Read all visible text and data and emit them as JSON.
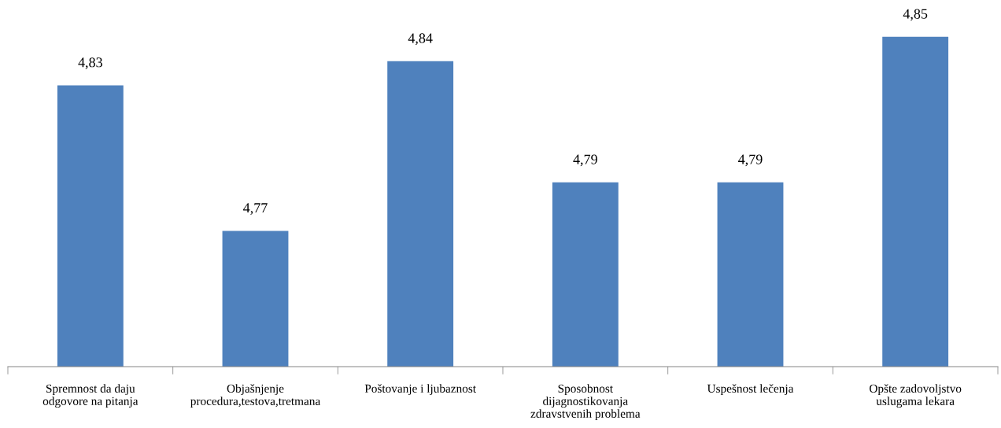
{
  "chart_data": {
    "type": "bar",
    "categories": [
      "Spremnost da daju\nodgovore na pitanja",
      "Objašnjenje\nprocedura,testova,tretmana",
      "Poštovanje i ljubaznost",
      "Sposobnost\ndijagnostikovanja\nzdravstvenih problema",
      "Uspešnost lečenja",
      "Opšte zadovoljstvo\nuslugama lekara"
    ],
    "values": [
      4.83,
      4.77,
      4.84,
      4.79,
      4.79,
      4.85
    ],
    "value_labels": [
      "4,83",
      "4,77",
      "4,84",
      "4,79",
      "4,79",
      "4,85"
    ],
    "color": "#4f81bd",
    "grid": false,
    "legend": false
  }
}
